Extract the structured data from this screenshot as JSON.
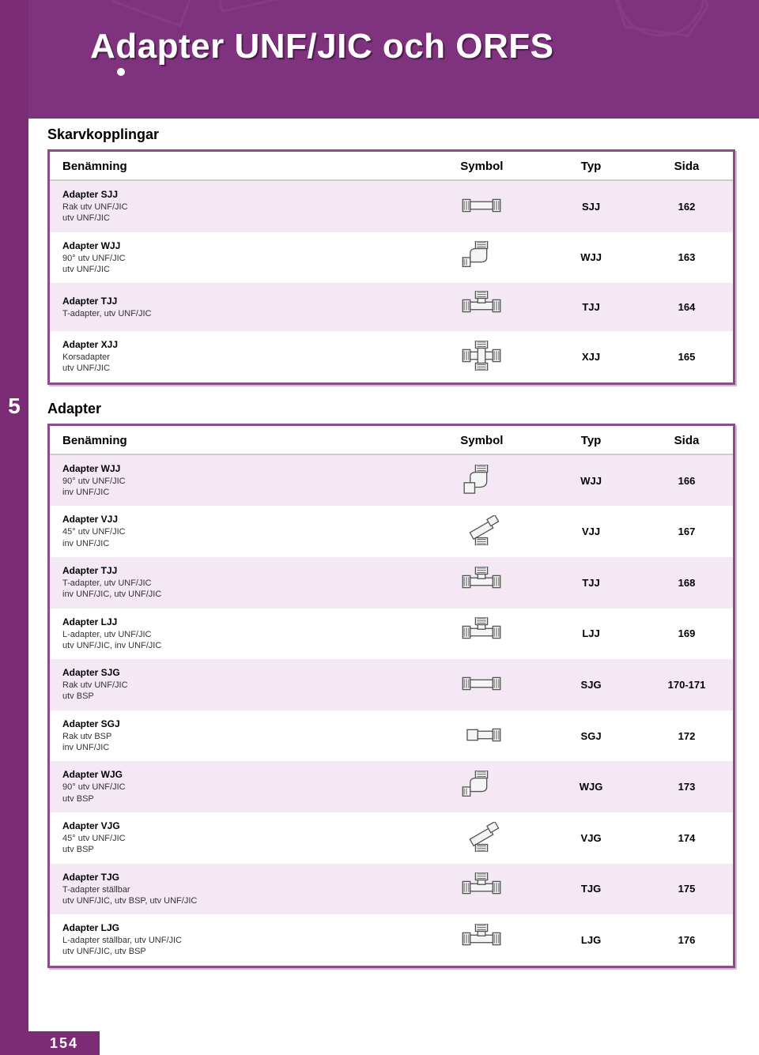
{
  "brand_color": "#7b2c74",
  "hero_bg": "#7f337e",
  "row_odd_bg": "#f3e8f3",
  "row_even_bg": "#ffffff",
  "border_color": "#8a4d88",
  "chapter_number": "5",
  "page_number": "154",
  "hero": {
    "title": "Adapter UNF/JIC och ORFS"
  },
  "columns": {
    "name": "Benämning",
    "symbol": "Symbol",
    "type": "Typ",
    "side": "Sida"
  },
  "sections": [
    {
      "title": "Skarvkopplingar",
      "rows": [
        {
          "title": "Adapter SJJ",
          "lines": [
            "Rak utv UNF/JIC",
            "utv UNF/JIC"
          ],
          "typ": "SJJ",
          "sida": "162",
          "icon": "straight"
        },
        {
          "title": "Adapter WJJ",
          "lines": [
            "90° utv UNF/JIC",
            "utv UNF/JIC"
          ],
          "typ": "WJJ",
          "sida": "163",
          "icon": "elbow90"
        },
        {
          "title": "Adapter TJJ",
          "lines": [
            "T-adapter, utv UNF/JIC"
          ],
          "typ": "TJJ",
          "sida": "164",
          "icon": "tee"
        },
        {
          "title": "Adapter XJJ",
          "lines": [
            "Korsadapter",
            "utv UNF/JIC"
          ],
          "typ": "XJJ",
          "sida": "165",
          "icon": "cross"
        }
      ]
    },
    {
      "title": "Adapter",
      "rows": [
        {
          "title": "Adapter WJJ",
          "lines": [
            "90° utv UNF/JIC",
            "inv UNF/JIC"
          ],
          "typ": "WJJ",
          "sida": "166",
          "icon": "elbow90f"
        },
        {
          "title": "Adapter VJJ",
          "lines": [
            "45° utv UNF/JIC",
            "inv UNF/JIC"
          ],
          "typ": "VJJ",
          "sida": "167",
          "icon": "elbow45"
        },
        {
          "title": "Adapter TJJ",
          "lines": [
            "T-adapter, utv UNF/JIC",
            "inv UNF/JIC, utv UNF/JIC"
          ],
          "typ": "TJJ",
          "sida": "168",
          "icon": "tee"
        },
        {
          "title": "Adapter LJJ",
          "lines": [
            "L-adapter, utv UNF/JIC",
            "utv UNF/JIC, inv UNF/JIC"
          ],
          "typ": "LJJ",
          "sida": "169",
          "icon": "tee"
        },
        {
          "title": "Adapter SJG",
          "lines": [
            "Rak utv UNF/JIC",
            "utv BSP"
          ],
          "typ": "SJG",
          "sida": "170-171",
          "icon": "straight"
        },
        {
          "title": "Adapter SGJ",
          "lines": [
            "Rak utv BSP",
            "inv UNF/JIC"
          ],
          "typ": "SGJ",
          "sida": "172",
          "icon": "straightf"
        },
        {
          "title": "Adapter WJG",
          "lines": [
            "90° utv UNF/JIC",
            "utv BSP"
          ],
          "typ": "WJG",
          "sida": "173",
          "icon": "elbow90"
        },
        {
          "title": "Adapter VJG",
          "lines": [
            "45° utv UNF/JIC",
            "utv BSP"
          ],
          "typ": "VJG",
          "sida": "174",
          "icon": "elbow45"
        },
        {
          "title": "Adapter TJG",
          "lines": [
            "T-adapter ställbar",
            "utv UNF/JIC, utv BSP, utv UNF/JIC"
          ],
          "typ": "TJG",
          "sida": "175",
          "icon": "tee"
        },
        {
          "title": "Adapter LJG",
          "lines": [
            "L-adapter ställbar, utv UNF/JIC",
            "utv UNF/JIC, utv BSP"
          ],
          "typ": "LJG",
          "sida": "176",
          "icon": "tee"
        }
      ]
    }
  ]
}
